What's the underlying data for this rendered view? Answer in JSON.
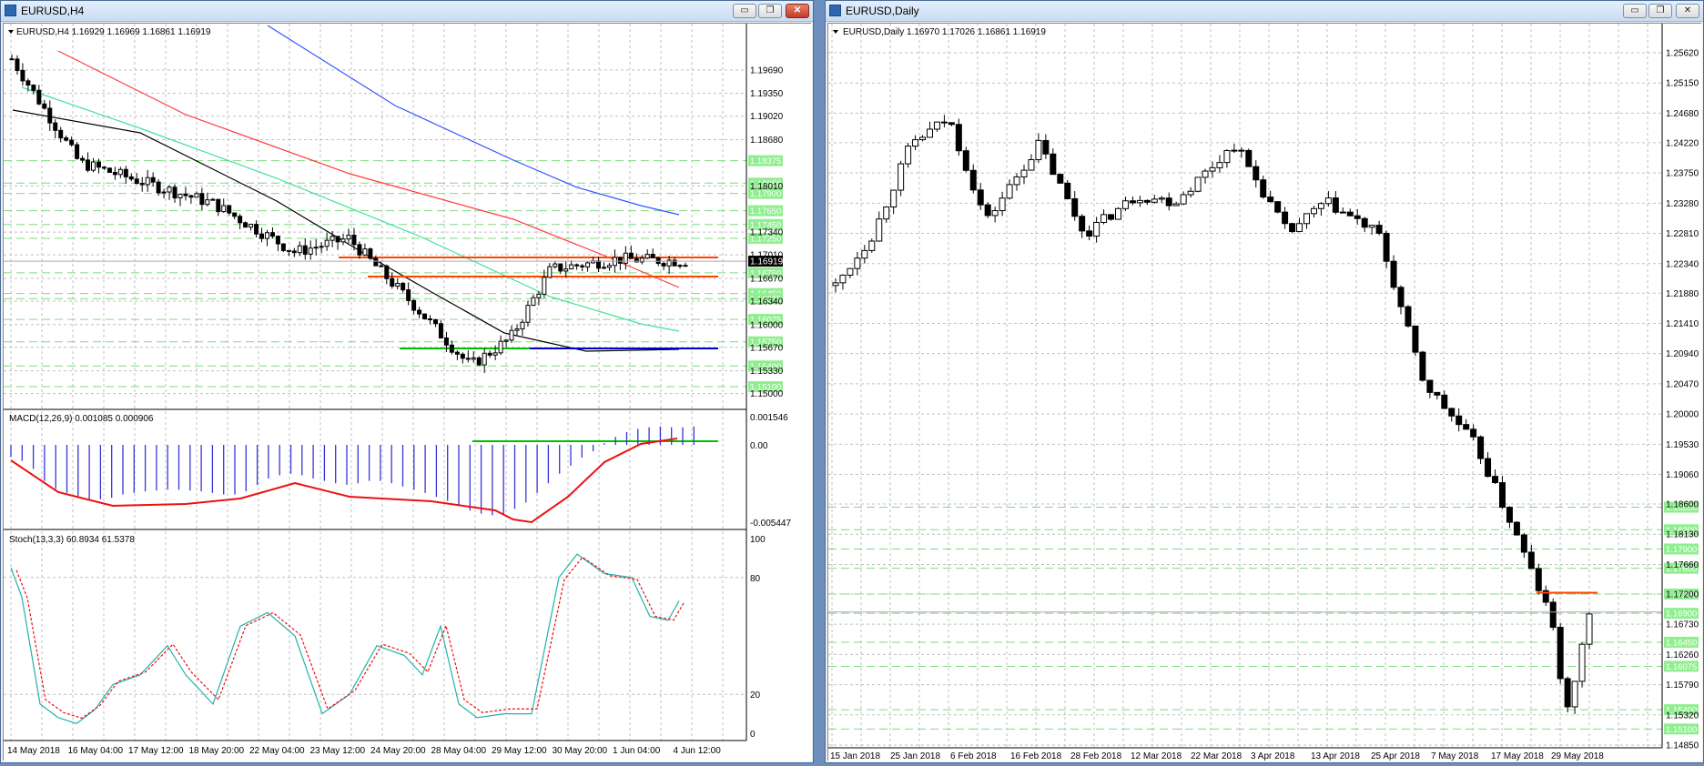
{
  "left_window": {
    "title": "EURUSD,H4",
    "header": "EURUSD,H4  1.16929 1.16969 1.16861 1.16919",
    "current_price": "1.16919",
    "price_labels": [
      "1.19690",
      "1.19350",
      "1.19020",
      "1.18680",
      "1.18010",
      "1.17340",
      "1.17010",
      "1.16670",
      "1.16340",
      "1.16000",
      "1.15670",
      "1.15330",
      "1.15000"
    ],
    "green_levels": [
      "1.18375",
      "1.18050",
      "1.17900",
      "1.17650",
      "1.17450",
      "1.17250",
      "1.16750",
      "1.16450",
      "1.16375",
      "1.16075",
      "1.15750",
      "1.15400",
      "1.15100"
    ],
    "time_labels": [
      "14 May 2018",
      "16 May 04:00",
      "17 May 12:00",
      "18 May 20:00",
      "22 May 04:00",
      "23 May 12:00",
      "24 May 20:00",
      "28 May 04:00",
      "29 May 12:00",
      "30 May 20:00",
      "1 Jun 04:00",
      "4 Jun 12:00"
    ],
    "macd": {
      "label": "MACD(12,26,9) 0.001085 0.000906",
      "top": "0.001546",
      "zero": "0.00",
      "bottom": "-0.005447"
    },
    "stoch": {
      "label": "Stoch(13,3,3) 60.8934 61.5378",
      "levels": [
        "100",
        "80",
        "20",
        "0"
      ]
    }
  },
  "right_window": {
    "title": "EURUSD,Daily",
    "header": "EURUSD,Daily  1.16970 1.17026 1.16861 1.16919",
    "price_labels": [
      "1.25620",
      "1.25150",
      "1.24680",
      "1.24220",
      "1.23750",
      "1.23280",
      "1.22810",
      "1.22340",
      "1.21880",
      "1.21410",
      "1.20940",
      "1.20470",
      "1.20000",
      "1.19530",
      "1.19060",
      "1.18600",
      "1.18130",
      "1.17660",
      "1.17200",
      "1.16730",
      "1.16260",
      "1.15790",
      "1.15320",
      "1.14850"
    ],
    "green_levels": [
      "1.18550",
      "1.18200",
      "1.17900",
      "1.17600",
      "1.17200",
      "1.16900",
      "1.16450",
      "1.16075",
      "1.15400",
      "1.15100"
    ],
    "time_labels": [
      "15 Jan 2018",
      "25 Jan 2018",
      "6 Feb 2018",
      "16 Feb 2018",
      "28 Feb 2018",
      "12 Mar 2018",
      "22 Mar 2018",
      "3 Apr 2018",
      "13 Apr 2018",
      "25 Apr 2018",
      "7 May 2018",
      "17 May 2018",
      "29 May 2018"
    ]
  },
  "window_buttons": {
    "minimize": "▭",
    "restore": "❐",
    "close": "✕"
  },
  "colors": {
    "bg": "#ffffff",
    "grid": "#c0c0c0",
    "level": "#7ddc7d",
    "level_label_bg": "#90ee90",
    "resistance": "#ff4500",
    "support_green": "#00c000",
    "support_blue": "#0000cd",
    "ma_red": "#ff3b3b",
    "ma_blue": "#3355ff",
    "ma_aqua": "#40e0a0",
    "ma_black": "#000000",
    "macd_hist": "#3535d8",
    "macd_signal": "#ee1010",
    "stoch_main": "#20b2aa",
    "stoch_signal": "#ee1010"
  }
}
